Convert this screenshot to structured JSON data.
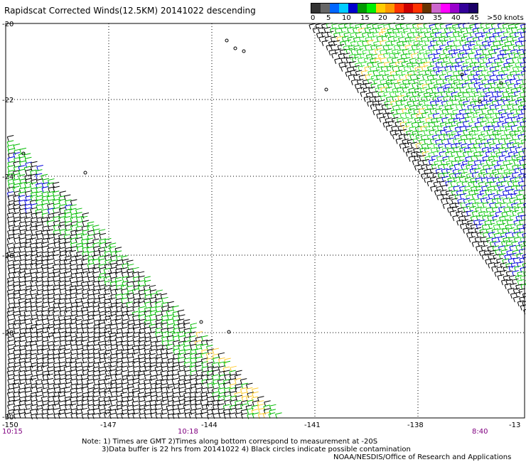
{
  "title": "Rapidscat Corrected Winds(12.5KM) 20141022 descending",
  "legend": {
    "colors": [
      "#333333",
      "#666666",
      "#0066ff",
      "#00ccff",
      "#0000cc",
      "#009900",
      "#00ee00",
      "#ffcc00",
      "#ff9900",
      "#ff3300",
      "#cc0000",
      "#ff3300",
      "#663300",
      "#cc66cc",
      "#ff00ff",
      "#9900cc",
      "#330099",
      "#1a0066"
    ],
    "labels": [
      "0",
      "5",
      "10",
      "15",
      "20",
      "25",
      "30",
      "35",
      "40",
      "45",
      ">50 knots"
    ]
  },
  "map": {
    "lat_ticks": [
      "-20",
      "-22",
      "-24",
      "-26",
      "-28",
      "-30"
    ],
    "lon_ticks": [
      "-150",
      "-147",
      "-144",
      "-141",
      "-138",
      "-13"
    ],
    "times": [
      "10:15",
      "10:18",
      "8:40"
    ],
    "time_color": "#800080"
  },
  "notes": {
    "line1": "Note: 1) Times are GMT 2)Times along bottom correspond to measurement at -20S",
    "line2": "3)Data buffer is 22 hrs from 20141022 4) Black circles indicate possible contamination",
    "line3": "NOAA/NESDIS/Office of Research and Applications"
  },
  "wind_colors": [
    "#000000",
    "#0000dd",
    "#00bb00",
    "#33dd33",
    "#ffcc33"
  ]
}
